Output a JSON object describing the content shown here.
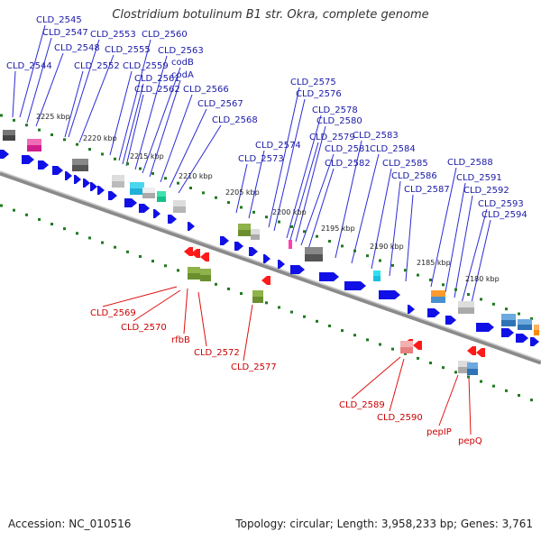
{
  "title": "Clostridium botulinum B1 str. Okra, complete genome",
  "footer": {
    "accession": "Accession: NC_010516",
    "summary": "Topology: circular; Length: 3,958,233 bp; Genes: 3,761"
  },
  "ticks": [
    "2225 kbp",
    "2220 kbp",
    "2215 kbp",
    "2210 kbp",
    "2205 kbp",
    "2200 kbp",
    "2195 kbp",
    "2190 kbp",
    "2185 kbp",
    "2180 kbp"
  ],
  "colors": {
    "forward_label": "#1a1aa6",
    "reverse_label": "#cc0000",
    "gene_blue": "#1010e6",
    "backbone": "#8a8a8a",
    "tick_green": "#1f7a1f"
  },
  "forward_labels": [
    "CLD_2544",
    "CLD_2545",
    "CLD_2547",
    "CLD_2548",
    "CLD_2552",
    "CLD_2553",
    "CLD_2555",
    "CLD_2559",
    "CLD_2560",
    "CLD_2561",
    "CLD_2562",
    "CLD_2563",
    "codB",
    "codA",
    "CLD_2566",
    "CLD_2567",
    "CLD_2568",
    "CLD_2573",
    "CLD_2574",
    "CLD_2575",
    "CLD_2576",
    "CLD_2578",
    "CLD_2579",
    "CLD_2580",
    "CLD_2581",
    "CLD_2582",
    "CLD_2583",
    "CLD_2584",
    "CLD_2585",
    "CLD_2586",
    "CLD_2587",
    "CLD_2588",
    "CLD_2591",
    "CLD_2592",
    "CLD_2593",
    "CLD_2594"
  ],
  "reverse_labels": [
    "CLD_2569",
    "CLD_2570",
    "rfbB",
    "CLD_2572",
    "CLD_2577",
    "CLD_2589",
    "CLD_2590",
    "pepIP",
    "pepQ"
  ]
}
